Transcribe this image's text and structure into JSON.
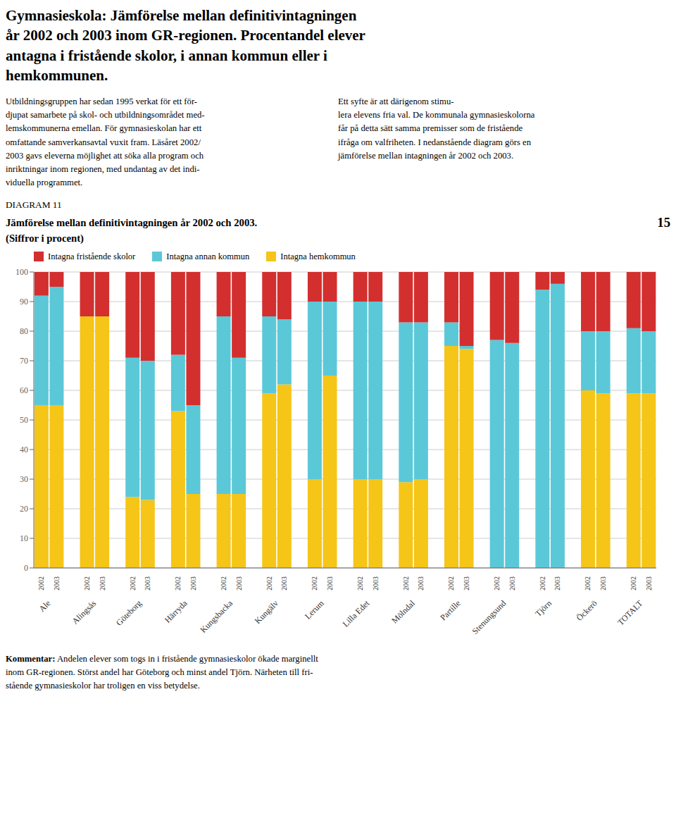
{
  "chart_data": {
    "type": "bar",
    "stacked": true,
    "title": "Gymnasieskola: Jämförelse mellan definitivintagningen\når 2002 och 2003 inom GR-regionen. Procentandel elever\nantagna i fristående skolor, i annan kommun eller i\nhemkommunen.",
    "subtitle": "Jämförelse mellan definitivintagningen år 2002 och 2003.\n(Siffror i procent)",
    "annotations": [
      "Utbildningsgruppen har sedan 1995 verkat för ett för-\ndjupat samarbete på skol- och utbildningsområdet med-\nlemskommunerna emellan. För gymnasieskolan har ett\nomfattande samverkansavtal vuxit fram. Läsåret 2002/\n2003 gavs eleverna möjlighet att söka alla program och\ninriktningar inom regionen, med undantag av det indi-\nviduella programmet.",
      "Ett syfte är att därigenom stimu-\nlera elevens fria val. De kommunala gymnasieskolorna\nfår på detta sätt samma premisser som de fristående\nifråga om valfriheten. I nedanstående diagram görs en\njämförelse mellan intagningen år 2002 och 2003.",
      "DIAGRAM 11",
      "15",
      "Kommentar:",
      "Andelen elever som togs in i fristående gymnasieskolor ökade marginellt\ninom GR-regionen. Störst andel har Göteborg och minst andel Tjörn. Närheten till fri-\nstående gymnasieskolor har troligen en viss betydelse."
    ],
    "categories": [
      "Ale",
      "Alingsås",
      "Göteborg",
      "Härryda",
      "Kungsbacka",
      "Kungälv",
      "Lerum",
      "Lilla Edet",
      "Mölndal",
      "Partille",
      "Stenungsund",
      "Tjörn",
      "Öckerö",
      "TOTALT"
    ],
    "years": [
      "2002",
      "2003"
    ],
    "series": [
      {
        "name": "Intagna fristående skolor",
        "color": "#D32F2F",
        "values": [
          [
            8,
            5
          ],
          [
            15,
            15
          ],
          [
            29,
            30
          ],
          [
            28,
            45
          ],
          [
            15,
            29
          ],
          [
            15,
            16
          ],
          [
            10,
            10
          ],
          [
            10,
            10
          ],
          [
            17,
            17
          ],
          [
            17,
            25
          ],
          [
            23,
            24
          ],
          [
            6,
            4
          ],
          [
            20,
            20
          ],
          [
            19,
            20
          ]
        ]
      },
      {
        "name": "Intagna annan kommun",
        "color": "#5BC8D8",
        "values": [
          [
            37,
            40
          ],
          [
            0,
            0
          ],
          [
            47,
            47
          ],
          [
            19,
            30
          ],
          [
            60,
            46
          ],
          [
            26,
            22
          ],
          [
            60,
            25
          ],
          [
            60,
            60
          ],
          [
            54,
            53
          ],
          [
            8,
            1
          ],
          [
            77,
            76
          ],
          [
            94,
            96
          ],
          [
            20,
            21
          ],
          [
            22,
            21
          ]
        ]
      },
      {
        "name": "Intagna hemkommun",
        "color": "#F5C518",
        "values": [
          [
            55,
            55
          ],
          [
            85,
            85
          ],
          [
            24,
            23
          ],
          [
            53,
            25
          ],
          [
            25,
            25
          ],
          [
            59,
            62
          ],
          [
            30,
            65
          ],
          [
            30,
            30
          ],
          [
            29,
            30
          ],
          [
            75,
            74
          ],
          [
            0,
            0
          ],
          [
            0,
            0
          ],
          [
            60,
            59
          ],
          [
            59,
            59
          ]
        ]
      }
    ],
    "ylim": [
      0,
      100
    ],
    "yticks": [
      0,
      10,
      20,
      30,
      40,
      50,
      60,
      70,
      80,
      90,
      100
    ],
    "grid": true,
    "legend": "top"
  }
}
